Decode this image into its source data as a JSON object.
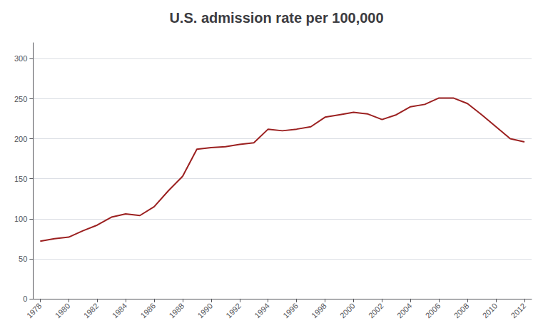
{
  "chart_data": {
    "type": "line",
    "title": "U.S. admission rate per 100,000",
    "x": [
      1978,
      1979,
      1980,
      1981,
      1982,
      1983,
      1984,
      1985,
      1986,
      1987,
      1988,
      1989,
      1990,
      1991,
      1992,
      1993,
      1994,
      1995,
      1996,
      1997,
      1998,
      1999,
      2000,
      2001,
      2002,
      2003,
      2004,
      2005,
      2006,
      2007,
      2008,
      2009,
      2010,
      2011,
      2012
    ],
    "values": [
      72,
      75,
      77,
      85,
      92,
      102,
      106,
      104,
      115,
      135,
      153,
      187,
      189,
      190,
      193,
      195,
      212,
      210,
      212,
      215,
      227,
      230,
      233,
      231,
      224,
      230,
      240,
      243,
      251,
      251,
      244,
      230,
      215,
      200,
      196
    ],
    "color": "#9B2020",
    "xlim": [
      1977.5,
      2012.5
    ],
    "xticks": [
      1978,
      1980,
      1982,
      1984,
      1986,
      1988,
      1990,
      1992,
      1994,
      1996,
      1998,
      2000,
      2002,
      2004,
      2006,
      2008,
      2010,
      2012
    ],
    "ylim": [
      0,
      320
    ],
    "yticks": [
      0,
      50,
      100,
      150,
      200,
      250,
      300
    ],
    "grid": true
  }
}
